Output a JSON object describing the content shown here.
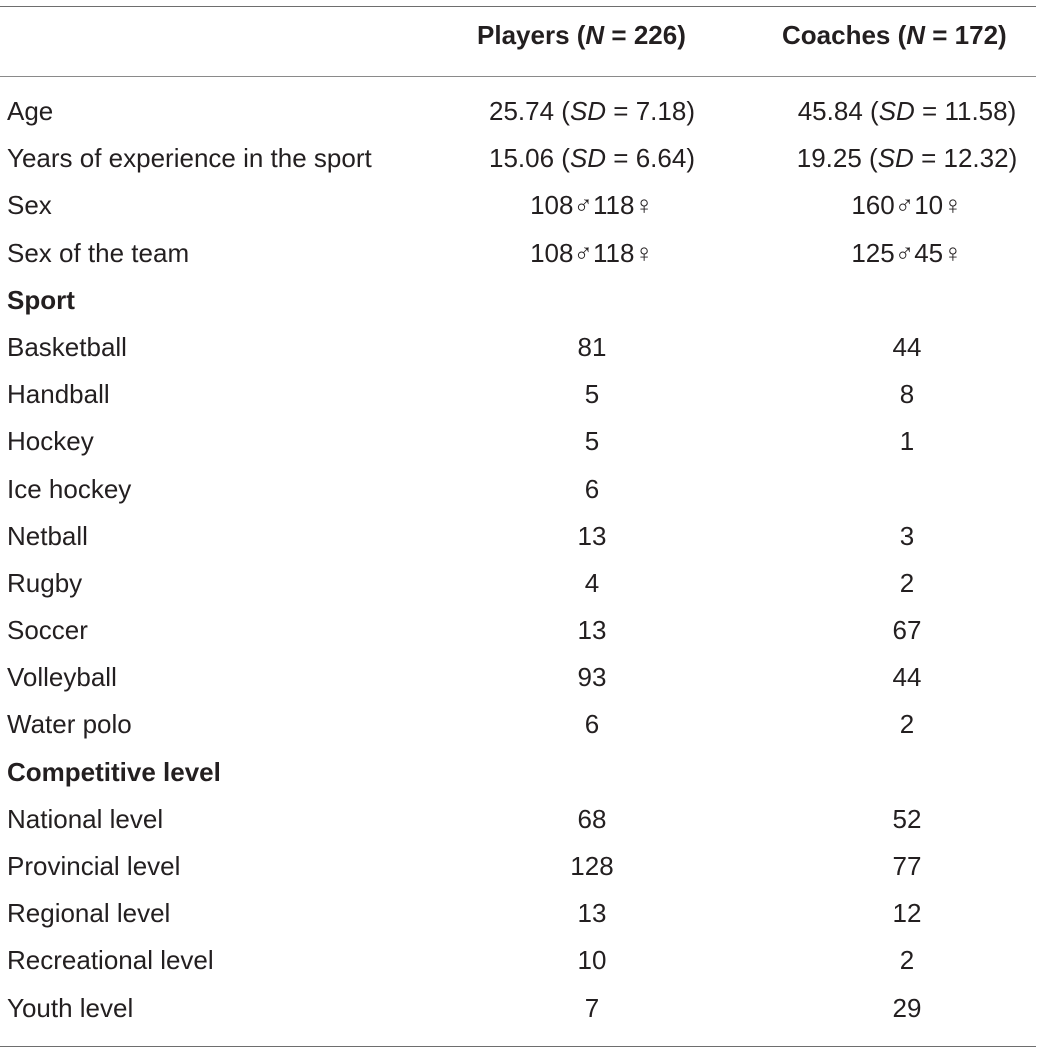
{
  "header": {
    "players_prefix": "Players (",
    "players_n_symbol": "N",
    "players_suffix": " = 226)",
    "coaches_prefix": "Coaches (",
    "coaches_n_symbol": "N",
    "coaches_suffix": " = 172)"
  },
  "stat_rows": [
    {
      "label": "Age",
      "players": {
        "mean": "25.74",
        "sd_symbol": "SD",
        "sd": "7.18"
      },
      "coaches": {
        "mean": "45.84",
        "sd_symbol": "SD",
        "sd": "11.58"
      }
    },
    {
      "label": "Years of experience in the sport",
      "players": {
        "mean": "15.06",
        "sd_symbol": "SD",
        "sd": "6.64"
      },
      "coaches": {
        "mean": "19.25",
        "sd_symbol": "SD",
        "sd": "12.32"
      }
    }
  ],
  "sex_rows": [
    {
      "label": "Sex",
      "players": "108♂118♀",
      "coaches": "160♂10♀"
    },
    {
      "label": "Sex of the team",
      "players": "108♂118♀",
      "coaches": "125♂45♀"
    }
  ],
  "sections": [
    {
      "title": "Sport",
      "rows": [
        {
          "label": "Basketball",
          "players": "81",
          "coaches": "44"
        },
        {
          "label": "Handball",
          "players": "5",
          "coaches": "8"
        },
        {
          "label": "Hockey",
          "players": "5",
          "coaches": "1"
        },
        {
          "label": "Ice hockey",
          "players": "6",
          "coaches": ""
        },
        {
          "label": "Netball",
          "players": "13",
          "coaches": "3"
        },
        {
          "label": "Rugby",
          "players": "4",
          "coaches": "2"
        },
        {
          "label": "Soccer",
          "players": "13",
          "coaches": "67"
        },
        {
          "label": "Volleyball",
          "players": "93",
          "coaches": "44"
        },
        {
          "label": "Water polo",
          "players": "6",
          "coaches": "2"
        }
      ]
    },
    {
      "title": "Competitive level",
      "rows": [
        {
          "label": "National level",
          "players": "68",
          "coaches": "52"
        },
        {
          "label": "Provincial level",
          "players": "128",
          "coaches": "77"
        },
        {
          "label": "Regional level",
          "players": "13",
          "coaches": "12"
        },
        {
          "label": "Recreational level",
          "players": "10",
          "coaches": "2"
        },
        {
          "label": "Youth level",
          "players": "7",
          "coaches": "29"
        }
      ]
    }
  ]
}
